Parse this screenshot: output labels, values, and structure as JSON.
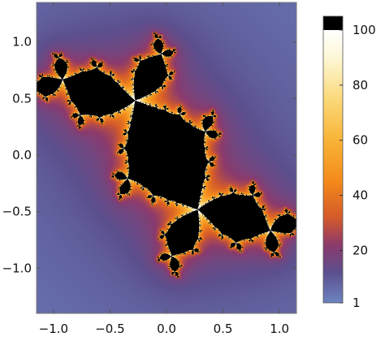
{
  "chart_data": {
    "type": "heatmap",
    "title": "",
    "xlabel": "",
    "ylabel": "",
    "xlim": [
      -1.15,
      1.15
    ],
    "ylim": [
      -1.4,
      1.35
    ],
    "x_ticks": [
      -1.0,
      -0.5,
      0.0,
      0.5,
      1.0
    ],
    "x_tick_labels": [
      "−1.0",
      "−0.5",
      "0.0",
      "0.5",
      "1.0"
    ],
    "y_ticks": [
      -1.0,
      -0.5,
      0.0,
      0.5,
      1.0
    ],
    "y_tick_labels": [
      "−1.0",
      "−0.5",
      "0.0",
      "0.5",
      "1.0"
    ],
    "colorbar": {
      "min": 1,
      "max": 105,
      "ticks": [
        1,
        20,
        40,
        60,
        80,
        100
      ],
      "tick_labels": [
        "1",
        "20",
        "40",
        "60",
        "80",
        "100"
      ],
      "stops": [
        {
          "value": 1,
          "color": "#6c84c0"
        },
        {
          "value": 12,
          "color": "#5c4f8e"
        },
        {
          "value": 22,
          "color": "#8c3a6c"
        },
        {
          "value": 32,
          "color": "#d45a2a"
        },
        {
          "value": 45,
          "color": "#f4891a"
        },
        {
          "value": 60,
          "color": "#f8b437"
        },
        {
          "value": 75,
          "color": "#fbd97a"
        },
        {
          "value": 90,
          "color": "#fdf7d6"
        },
        {
          "value": 100,
          "color": "#ffffff"
        },
        {
          "value": 100.01,
          "color": "#000000"
        },
        {
          "value": 105,
          "color": "#000000"
        }
      ]
    },
    "field": {
      "description_of_values": "escape-time iteration count of a filled Julia set",
      "c_real": -0.12,
      "c_imag": 0.75,
      "max_iterations": 105,
      "background_color": "#6c84c0",
      "interior_color": "#000000"
    }
  }
}
